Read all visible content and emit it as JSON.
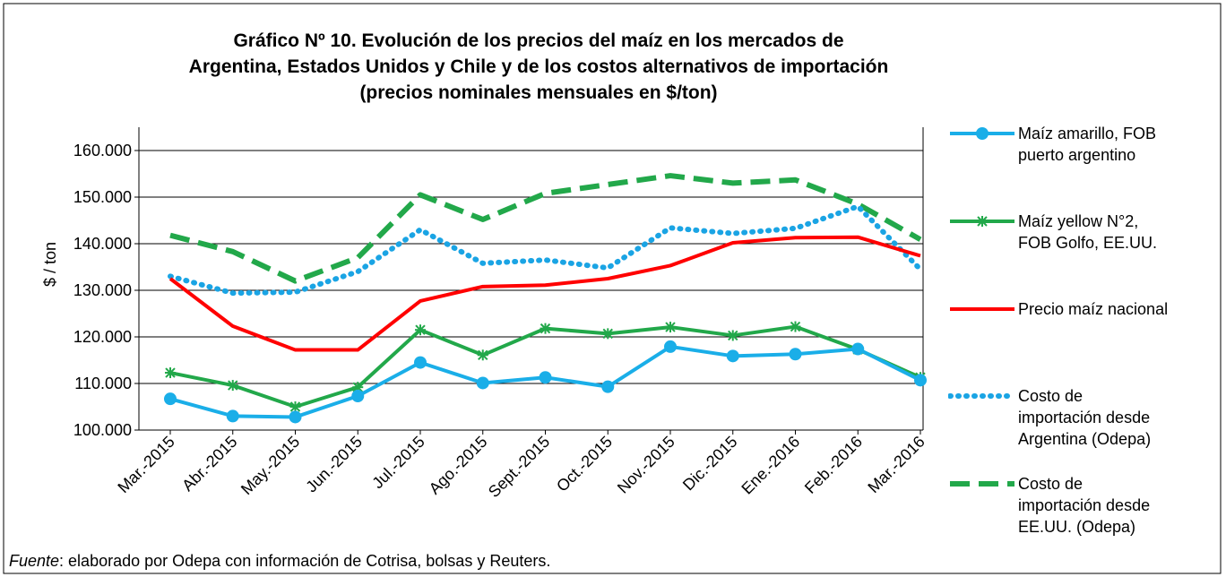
{
  "chart_data": {
    "type": "line",
    "title": [
      "Gráfico Nº 10. Evolución de los precios del maíz en los mercados de",
      "Argentina, Estados Unidos y Chile y de los costos alternativos de importación",
      "(precios nominales mensuales en $/ton)"
    ],
    "y_label": "$ / ton",
    "categories": [
      "Mar.-2015",
      "Abr.-2015",
      "May.-2015",
      "Jun.-2015",
      "Jul.-2015",
      "Ago.-2015",
      "Sept.-2015",
      "Oct.-2015",
      "Nov.-2015",
      "Dic.-2015",
      "Ene.-2016",
      "Feb.-2016",
      "Mar.-2016"
    ],
    "ylim": [
      100000,
      165000
    ],
    "yticks": [
      {
        "value": 100000,
        "label": "100.000"
      },
      {
        "value": 110000,
        "label": "110.000"
      },
      {
        "value": 120000,
        "label": "120.000"
      },
      {
        "value": 130000,
        "label": "130.000"
      },
      {
        "value": 140000,
        "label": "140.000"
      },
      {
        "value": 150000,
        "label": "150.000"
      },
      {
        "value": 160000,
        "label": "160.000"
      }
    ],
    "grid": true,
    "series": [
      {
        "name": "Maíz amarillo, FOB puerto argentino",
        "color": "#1aaee8",
        "style": "solid",
        "marker": "circle",
        "values": [
          106700,
          103000,
          102800,
          107300,
          114500,
          110100,
          111300,
          109300,
          117900,
          115900,
          116300,
          117400,
          110700
        ]
      },
      {
        "name": "Maíz yellow N°2, FOB Golfo, EE.UU.",
        "color": "#22a84a",
        "style": "solid",
        "marker": "star",
        "values": [
          112300,
          109600,
          105000,
          109200,
          121500,
          116100,
          121800,
          120700,
          122100,
          120300,
          122200,
          117300,
          111300
        ]
      },
      {
        "name": "Precio maíz nacional",
        "color": "#ff0000",
        "style": "solid",
        "marker": "none",
        "values": [
          132500,
          122300,
          117200,
          117200,
          127700,
          130800,
          131100,
          132500,
          135300,
          140200,
          141300,
          141400,
          137400
        ]
      },
      {
        "name": "Costo de importación desde Argentina (Odepa)",
        "color": "#1aa4e4",
        "style": "dotted",
        "marker": "none",
        "values": [
          133000,
          129400,
          129600,
          134000,
          143000,
          135800,
          136500,
          134800,
          143400,
          142200,
          143300,
          148000,
          134500
        ]
      },
      {
        "name": "Costo de importación desde EE.UU. (Odepa)",
        "color": "#22a84a",
        "style": "dashed",
        "marker": "none",
        "values": [
          141800,
          138300,
          132000,
          137000,
          150500,
          145200,
          150800,
          152700,
          154600,
          153000,
          153700,
          148500,
          140900
        ]
      }
    ],
    "source_label": "Fuente",
    "source_text": ": elaborado por Odepa con información de Cotrisa, bolsas y Reuters."
  }
}
